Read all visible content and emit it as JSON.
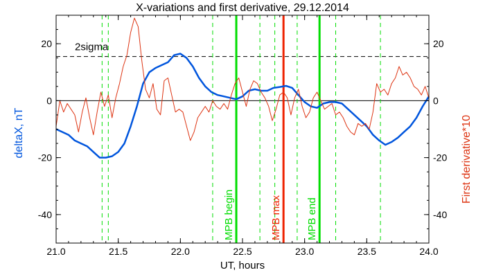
{
  "chart_data": {
    "type": "line",
    "title": "X-variations and first derivative, 29.12.2014",
    "xlabel": "UT, hours",
    "ylabel_left": "deltaX, nT",
    "ylabel_right": "First derivative*10",
    "xlim": [
      21.0,
      24.0
    ],
    "ylim": [
      -50,
      30
    ],
    "x_ticks": [
      21.0,
      21.5,
      22.0,
      22.5,
      23.0,
      23.5,
      24.0
    ],
    "x_tick_labels": [
      "21.0",
      "21.5",
      "22.0",
      "22.5",
      "23.0",
      "23.5",
      "24.0"
    ],
    "y_ticks": [
      -40,
      -20,
      0,
      20
    ],
    "y_tick_labels": [
      "-40",
      "-20",
      "0",
      "20"
    ],
    "grid": false,
    "colors": {
      "deltaX": "#0055dd",
      "derivative": "#dd3311",
      "mpb": "#00dd00",
      "mpb_max": "#ee2200",
      "axis": "#000000"
    },
    "sigma_line": {
      "y": 15.5,
      "label": "2sigma"
    },
    "zero_line": {
      "y": 0
    },
    "vertical_markers": [
      {
        "x": 22.45,
        "label": "MPB begin",
        "color": "#00dd00",
        "style": "solid"
      },
      {
        "x": 22.83,
        "label": "MPB max",
        "color": "#ee2200",
        "style": "solid"
      },
      {
        "x": 23.12,
        "label": "MPB end",
        "color": "#00dd00",
        "style": "solid"
      }
    ],
    "dashed_markers": [
      21.37,
      21.42,
      22.26,
      22.64,
      22.76,
      22.94,
      23.25,
      23.61
    ],
    "series": [
      {
        "key": "deltaX",
        "axis": "left",
        "x": [
          21.0,
          21.05,
          21.1,
          21.15,
          21.2,
          21.25,
          21.3,
          21.35,
          21.4,
          21.45,
          21.5,
          21.55,
          21.6,
          21.65,
          21.7,
          21.75,
          21.8,
          21.85,
          21.9,
          21.95,
          22.0,
          22.05,
          22.1,
          22.15,
          22.2,
          22.25,
          22.3,
          22.35,
          22.4,
          22.45,
          22.5,
          22.55,
          22.6,
          22.65,
          22.7,
          22.75,
          22.8,
          22.85,
          22.9,
          22.95,
          23.0,
          23.05,
          23.1,
          23.15,
          23.2,
          23.25,
          23.3,
          23.35,
          23.4,
          23.45,
          23.5,
          23.55,
          23.6,
          23.65,
          23.7,
          23.75,
          23.8,
          23.85,
          23.9,
          23.95,
          24.0
        ],
        "y": [
          -10,
          -11,
          -12,
          -14,
          -15,
          -16,
          -18,
          -20,
          -20,
          -19.5,
          -18,
          -15,
          -9,
          -2,
          6,
          10,
          11.5,
          12.5,
          13.5,
          16,
          16.5,
          15,
          12,
          8,
          5,
          3,
          2,
          1.5,
          1,
          0.5,
          1.5,
          3.5,
          4,
          3.5,
          3.5,
          4.5,
          4.8,
          5.2,
          4.5,
          2,
          -0.5,
          -2,
          -2.5,
          -1,
          -0.5,
          -0.5,
          -1,
          -3,
          -5,
          -7,
          -9,
          -12,
          -14,
          -15.5,
          -14.5,
          -13,
          -11,
          -9,
          -6,
          -2,
          1.5
        ]
      },
      {
        "key": "derivative",
        "axis": "left",
        "x": [
          21.0,
          21.03,
          21.06,
          21.09,
          21.12,
          21.15,
          21.18,
          21.21,
          21.24,
          21.27,
          21.3,
          21.33,
          21.36,
          21.39,
          21.42,
          21.45,
          21.48,
          21.51,
          21.54,
          21.57,
          21.6,
          21.63,
          21.66,
          21.69,
          21.72,
          21.75,
          21.78,
          21.81,
          21.84,
          21.87,
          21.9,
          21.93,
          21.96,
          21.99,
          22.02,
          22.05,
          22.08,
          22.11,
          22.14,
          22.17,
          22.2,
          22.23,
          22.26,
          22.29,
          22.32,
          22.35,
          22.38,
          22.41,
          22.44,
          22.47,
          22.5,
          22.53,
          22.56,
          22.59,
          22.62,
          22.65,
          22.68,
          22.71,
          22.74,
          22.77,
          22.8,
          22.83,
          22.86,
          22.89,
          22.92,
          22.95,
          22.98,
          23.01,
          23.04,
          23.07,
          23.1,
          23.13,
          23.16,
          23.19,
          23.22,
          23.25,
          23.28,
          23.31,
          23.34,
          23.37,
          23.4,
          23.43,
          23.46,
          23.49,
          23.52,
          23.55,
          23.58,
          23.61,
          23.64,
          23.67,
          23.7,
          23.73,
          23.76,
          23.79,
          23.82,
          23.85,
          23.88,
          23.91,
          23.94,
          23.97,
          24.0
        ],
        "y": [
          -9,
          0,
          -4,
          -1,
          -3,
          -5,
          -11,
          -4,
          1,
          -6,
          -12,
          -4,
          3,
          -2,
          2,
          -6,
          1,
          6,
          12,
          16,
          24,
          29,
          26,
          14,
          4,
          1,
          6,
          -3,
          -5,
          7,
          8,
          2,
          -4,
          -3,
          -4,
          -9,
          -14,
          -11,
          -6,
          -4,
          -2,
          -4,
          0,
          -2,
          -3,
          -1,
          -3,
          2,
          6,
          8,
          3,
          -2,
          4,
          7,
          6,
          3,
          1,
          -2,
          -7,
          -3,
          2,
          3,
          1,
          -5,
          1,
          4,
          -2,
          -6,
          -4,
          1,
          3,
          0,
          -3,
          -2,
          -1,
          -5,
          -4,
          -6,
          -9,
          -11,
          -12,
          -8,
          -9,
          -8,
          -10,
          -4,
          6,
          3,
          4,
          2,
          6,
          8,
          12,
          9,
          10,
          8,
          5,
          4,
          2,
          5,
          1
        ]
      }
    ]
  }
}
